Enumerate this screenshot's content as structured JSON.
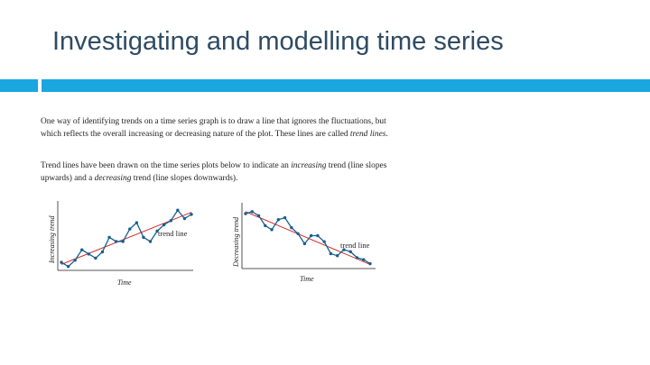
{
  "slide": {
    "title": "Investigating and modelling time series",
    "accent_color": "#1aa6df"
  },
  "paragraphs": {
    "p1_a": "One way of identifying trends on a time series graph is to draw a line that ignores the fluctuations, but which reflects the overall increasing or decreasing nature of the plot. These lines are called ",
    "p1_em": "trend lines",
    "p1_b": ".",
    "p2_a": "Trend lines have been drawn on the time series plots below to indicate an ",
    "p2_em1": "increasing",
    "p2_b": " trend (line slopes upwards) and a ",
    "p2_em2": "decreasing",
    "p2_c": " trend (line slopes downwards)."
  },
  "chart_data": [
    {
      "type": "line",
      "xlabel": "Time",
      "ylabel": "Increasing trend",
      "annotation": "trend line",
      "x": [
        1,
        2,
        3,
        4,
        5,
        6,
        7,
        8,
        9,
        10,
        11,
        12,
        13,
        14,
        15,
        16,
        17,
        18,
        19,
        20
      ],
      "values": [
        1.5,
        0.5,
        2.0,
        4.5,
        3.5,
        2.5,
        4.0,
        7.5,
        6.5,
        6.5,
        9.5,
        11.0,
        7.5,
        6.5,
        9.0,
        10.5,
        11.5,
        14.0,
        12.0,
        13.0
      ],
      "trend": {
        "start": 1.0,
        "end": 13.5
      },
      "ylim": [
        0,
        16
      ]
    },
    {
      "type": "line",
      "xlabel": "Time",
      "ylabel": "Decreasing trend",
      "annotation": "trend line",
      "x": [
        1,
        2,
        3,
        4,
        5,
        6,
        7,
        8,
        9,
        10,
        11,
        12,
        13,
        14,
        15,
        16,
        17,
        18,
        19,
        20
      ],
      "values": [
        13.5,
        14.0,
        13.0,
        10.5,
        9.5,
        12.0,
        12.5,
        10.0,
        8.5,
        6.0,
        8.0,
        8.0,
        6.5,
        3.5,
        3.0,
        4.5,
        4.0,
        2.5,
        2.0,
        1.0
      ],
      "trend": {
        "start": 14.0,
        "end": 0.8
      },
      "ylim": [
        0,
        16
      ]
    }
  ]
}
